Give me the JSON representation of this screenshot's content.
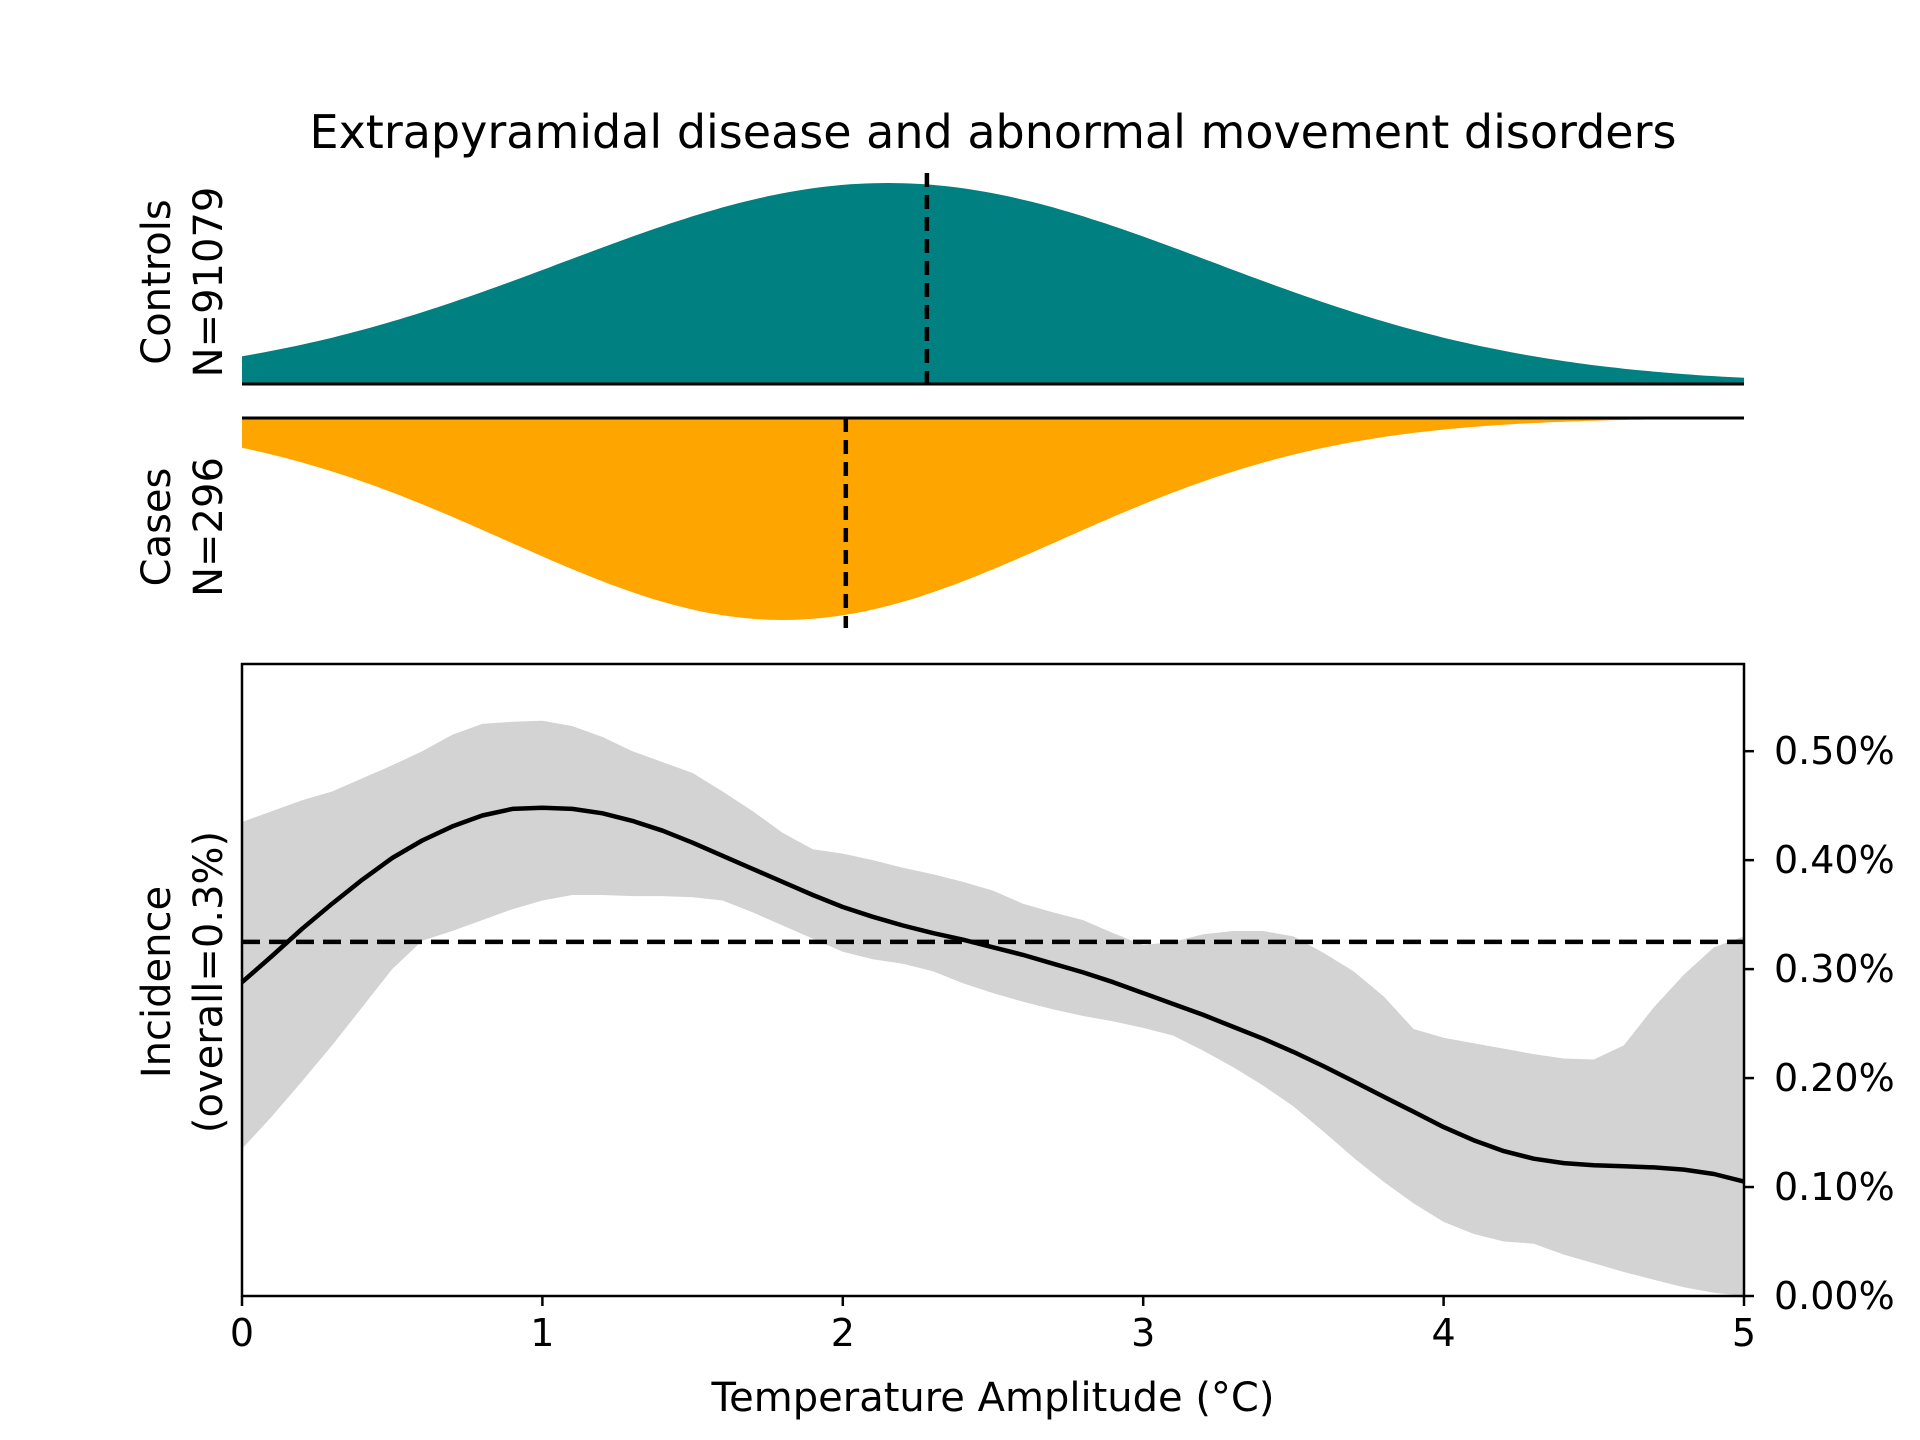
{
  "chart_data": {
    "type": "area",
    "title": "Extrapyramidal disease and abnormal movement disorders",
    "xlabel": "Temperature Amplitude (°C)",
    "x_ticks": [
      "0",
      "1",
      "2",
      "3",
      "4",
      "5"
    ],
    "xlim": [
      0,
      5
    ],
    "panels": [
      {
        "name": "controls",
        "label_line1": "Controls",
        "label_line2": "N=91079",
        "color": "#008080",
        "density_shape": "normal",
        "mean_line_x": 2.28,
        "peak_x": 2.15,
        "spread_sd": 1.08
      },
      {
        "name": "cases",
        "label_line1": "Cases",
        "label_line2": "N=296",
        "color": "#FFA500",
        "density_shape": "normal, drawn mirrored below baseline",
        "mean_line_x": 2.01,
        "peak_x": 1.8,
        "spread_sd": 0.92
      }
    ],
    "incidence": {
      "ylabel_line1": "Incidence",
      "ylabel_line2": "(overall=0.3%)",
      "y_axis_side": "right",
      "ylim": [
        0,
        0.0058
      ],
      "y_ticks": [
        {
          "value": 0.0,
          "label": "0.00%"
        },
        {
          "value": 0.001,
          "label": "0.10%"
        },
        {
          "value": 0.002,
          "label": "0.20%"
        },
        {
          "value": 0.003,
          "label": "0.30%"
        },
        {
          "value": 0.004,
          "label": "0.40%"
        },
        {
          "value": 0.005,
          "label": "0.50%"
        }
      ],
      "overall_line_value": 0.00325,
      "line_color": "#000000",
      "band_color": "#d3d3d3",
      "x": [
        0,
        0.1,
        0.2,
        0.3,
        0.4,
        0.5,
        0.6,
        0.7,
        0.8,
        0.9,
        1.0,
        1.1,
        1.2,
        1.3,
        1.4,
        1.5,
        1.6,
        1.7,
        1.8,
        1.9,
        2.0,
        2.1,
        2.2,
        2.3,
        2.4,
        2.5,
        2.6,
        2.7,
        2.8,
        2.9,
        3.0,
        3.1,
        3.2,
        3.3,
        3.4,
        3.5,
        3.6,
        3.7,
        3.8,
        3.9,
        4.0,
        4.1,
        4.2,
        4.3,
        4.4,
        4.5,
        4.6,
        4.7,
        4.8,
        4.9,
        5.0
      ],
      "y": [
        0.00288,
        0.00312,
        0.00337,
        0.0036,
        0.00382,
        0.00402,
        0.00418,
        0.00431,
        0.00441,
        0.00447,
        0.00448,
        0.00447,
        0.00443,
        0.00436,
        0.00427,
        0.00416,
        0.00404,
        0.00392,
        0.0038,
        0.00368,
        0.00357,
        0.00348,
        0.0034,
        0.00333,
        0.00327,
        0.0032,
        0.00313,
        0.00305,
        0.00297,
        0.00288,
        0.00278,
        0.00268,
        0.00258,
        0.00247,
        0.00236,
        0.00224,
        0.00211,
        0.00197,
        0.00183,
        0.00169,
        0.00155,
        0.00143,
        0.00133,
        0.00126,
        0.00122,
        0.0012,
        0.00119,
        0.00118,
        0.00116,
        0.00112,
        0.00105
      ],
      "band_upper": [
        0.00435,
        0.00445,
        0.00455,
        0.00463,
        0.00475,
        0.00487,
        0.005,
        0.00515,
        0.00525,
        0.00527,
        0.00528,
        0.00523,
        0.00513,
        0.005,
        0.0049,
        0.0048,
        0.00463,
        0.00445,
        0.00425,
        0.0041,
        0.00406,
        0.004,
        0.00393,
        0.00387,
        0.0038,
        0.00372,
        0.0036,
        0.00352,
        0.00345,
        0.00333,
        0.00322,
        0.00325,
        0.00332,
        0.00335,
        0.00335,
        0.0033,
        0.00315,
        0.00298,
        0.00275,
        0.00245,
        0.00237,
        0.00232,
        0.00227,
        0.00222,
        0.00218,
        0.00217,
        0.0023,
        0.00265,
        0.00295,
        0.0032,
        0.0033
      ],
      "band_lower": [
        0.00135,
        0.00165,
        0.00197,
        0.0023,
        0.00265,
        0.003,
        0.00326,
        0.00335,
        0.00345,
        0.00355,
        0.00363,
        0.00368,
        0.00368,
        0.00367,
        0.00367,
        0.00366,
        0.00363,
        0.00352,
        0.0034,
        0.00328,
        0.00316,
        0.00309,
        0.00305,
        0.00298,
        0.00287,
        0.00278,
        0.0027,
        0.00263,
        0.00257,
        0.00252,
        0.00246,
        0.00239,
        0.00225,
        0.0021,
        0.00193,
        0.00174,
        0.00151,
        0.00127,
        0.00105,
        0.00085,
        0.00068,
        0.00057,
        0.0005,
        0.00048,
        0.00038,
        0.0003,
        0.00022,
        0.00015,
        8e-05,
        3e-05,
        0.0
      ]
    }
  }
}
